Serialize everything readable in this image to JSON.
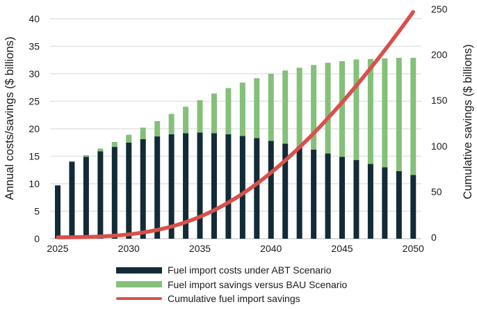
{
  "chart_data": {
    "type": "bar",
    "title": "",
    "xlabel": "",
    "ylabel": "Annual costs/savings  ($ billions)",
    "y2label": "Cumulative savings ($ billions)",
    "ylim": [
      0,
      40
    ],
    "y2lim": [
      0,
      250
    ],
    "yticks": [
      0,
      5,
      10,
      15,
      20,
      25,
      30,
      35,
      40
    ],
    "y2ticks": [
      0,
      50,
      100,
      150,
      200,
      250
    ],
    "grid": true,
    "legend_position": "bottom",
    "categories": [
      2025,
      2026,
      2027,
      2028,
      2029,
      2030,
      2031,
      2032,
      2033,
      2034,
      2035,
      2036,
      2037,
      2038,
      2039,
      2040,
      2041,
      2042,
      2043,
      2044,
      2045,
      2046,
      2047,
      2048,
      2049,
      2050
    ],
    "xtick_labels": [
      "2025",
      "2030",
      "2035",
      "2040",
      "2045",
      "2050"
    ],
    "series": [
      {
        "name": "Fuel import costs under ABT Scenario",
        "kind": "stacked-bar",
        "axis": "left",
        "color": "#132b36",
        "values": [
          9.7,
          14.0,
          14.9,
          15.9,
          16.7,
          17.5,
          18.1,
          18.6,
          19.0,
          19.2,
          19.3,
          19.2,
          19.0,
          18.7,
          18.3,
          17.8,
          17.3,
          16.8,
          16.2,
          15.5,
          14.9,
          14.3,
          13.6,
          13.0,
          12.3,
          11.6
        ]
      },
      {
        "name": "Fuel import savings versus BAU Scenario",
        "kind": "stacked-bar",
        "axis": "left",
        "color": "#84c07a",
        "values": [
          0.0,
          0.1,
          0.3,
          0.5,
          0.9,
          1.4,
          2.1,
          2.8,
          3.7,
          4.8,
          5.9,
          7.2,
          8.4,
          9.7,
          10.9,
          12.2,
          13.3,
          14.3,
          15.4,
          16.5,
          17.4,
          18.3,
          19.1,
          19.8,
          20.6,
          21.3
        ]
      },
      {
        "name": "Cumulative fuel import savings",
        "kind": "line",
        "axis": "right",
        "color": "#d9504a",
        "values": [
          0.0,
          0.1,
          0.4,
          0.9,
          1.8,
          3.2,
          5.3,
          8.1,
          11.8,
          16.6,
          22.5,
          29.7,
          38.1,
          47.8,
          58.7,
          70.9,
          84.2,
          98.5,
          113.9,
          130.4,
          147.8,
          166.1,
          185.2,
          205.0,
          225.6,
          246.9
        ]
      }
    ]
  }
}
